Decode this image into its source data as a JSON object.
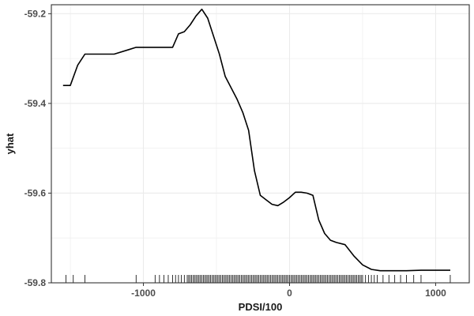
{
  "chart_data": {
    "type": "line",
    "title": "",
    "xlabel": "PDSI/100",
    "ylabel": "yhat",
    "xlim": [
      -1630,
      1230
    ],
    "ylim": [
      -59.8,
      -59.18
    ],
    "x_ticks": [
      -1000,
      0,
      1000
    ],
    "x_tick_labels": [
      "-1000",
      "0",
      "1000"
    ],
    "y_ticks": [
      -59.8,
      -59.6,
      -59.4,
      -59.2
    ],
    "y_tick_labels": [
      "-59.8",
      "-59.6",
      "-59.4",
      "-59.2"
    ],
    "grid": true,
    "legend": "none",
    "colors": {
      "line": "#000000",
      "grid": "#ebebeb",
      "panel_border": "#333333",
      "rug": "#000000"
    },
    "series": [
      {
        "x": [
          -1550,
          -1500,
          -1450,
          -1400,
          -1300,
          -1200,
          -1100,
          -1050,
          -1000,
          -900,
          -800,
          -760,
          -720,
          -680,
          -640,
          -600,
          -560,
          -520,
          -480,
          -440,
          -400,
          -360,
          -320,
          -280,
          -240,
          -200,
          -160,
          -120,
          -80,
          -40,
          0,
          40,
          80,
          120,
          160,
          200,
          240,
          280,
          320,
          380,
          440,
          500,
          560,
          620,
          680,
          720,
          800,
          900,
          1000,
          1100
        ],
        "y": [
          -59.36,
          -59.36,
          -59.315,
          -59.29,
          -59.29,
          -59.29,
          -59.28,
          -59.275,
          -59.275,
          -59.275,
          -59.275,
          -59.245,
          -59.24,
          -59.225,
          -59.205,
          -59.19,
          -59.21,
          -59.25,
          -59.29,
          -59.34,
          -59.365,
          -59.39,
          -59.42,
          -59.46,
          -59.55,
          -59.605,
          -59.615,
          -59.625,
          -59.628,
          -59.62,
          -59.61,
          -59.598,
          -59.598,
          -59.6,
          -59.605,
          -59.66,
          -59.69,
          -59.705,
          -59.71,
          -59.715,
          -59.74,
          -59.76,
          -59.77,
          -59.773,
          -59.773,
          -59.773,
          -59.773,
          -59.772,
          -59.772,
          -59.772
        ]
      }
    ],
    "rug_x": [
      -1530,
      -1480,
      -1400,
      -1050,
      -920,
      -890,
      -860,
      -830,
      -800,
      -780,
      -760,
      -740,
      -720,
      -700,
      -690,
      -680,
      -670,
      -660,
      -650,
      -640,
      -630,
      -620,
      -610,
      -600,
      -590,
      -580,
      -570,
      -560,
      -550,
      -540,
      -530,
      -520,
      -510,
      -500,
      -490,
      -480,
      -470,
      -460,
      -450,
      -440,
      -430,
      -420,
      -410,
      -400,
      -390,
      -380,
      -370,
      -360,
      -350,
      -340,
      -330,
      -320,
      -310,
      -300,
      -290,
      -280,
      -270,
      -260,
      -250,
      -240,
      -230,
      -220,
      -210,
      -200,
      -190,
      -180,
      -170,
      -160,
      -150,
      -140,
      -130,
      -120,
      -110,
      -100,
      -90,
      -80,
      -70,
      -60,
      -50,
      -40,
      -30,
      -20,
      -10,
      0,
      10,
      20,
      30,
      40,
      50,
      60,
      70,
      80,
      90,
      100,
      110,
      120,
      130,
      140,
      150,
      160,
      170,
      180,
      190,
      200,
      210,
      220,
      230,
      240,
      250,
      260,
      270,
      280,
      290,
      300,
      310,
      320,
      330,
      340,
      350,
      360,
      370,
      380,
      390,
      400,
      410,
      420,
      430,
      440,
      450,
      460,
      470,
      480,
      490,
      500,
      520,
      540,
      560,
      580,
      600,
      640,
      680,
      720,
      760,
      800,
      850,
      900,
      1100
    ]
  }
}
